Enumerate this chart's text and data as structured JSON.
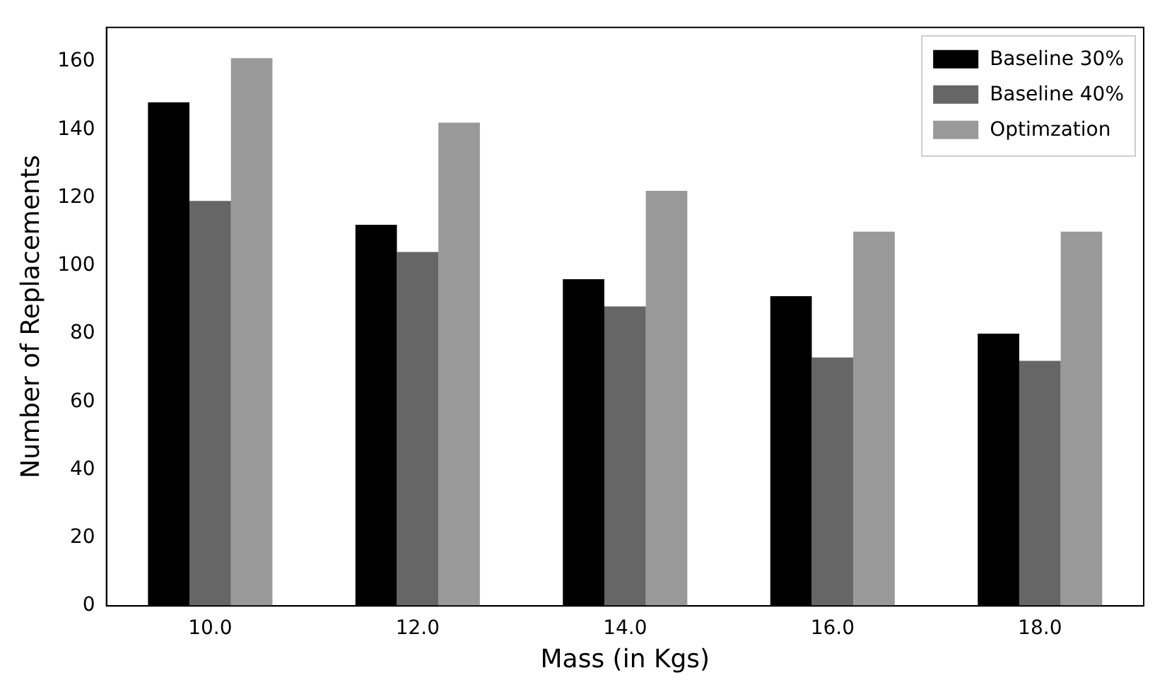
{
  "chart_data": {
    "type": "bar",
    "xlabel": "Mass (in Kgs)",
    "ylabel": "Number of Replacements",
    "categories": [
      "10.0",
      "12.0",
      "14.0",
      "16.0",
      "18.0"
    ],
    "series": [
      {
        "name": "Baseline 30%",
        "color": "#000000",
        "values": [
          148,
          112,
          96,
          91,
          80
        ]
      },
      {
        "name": "Baseline 40%",
        "color": "#666666",
        "values": [
          119,
          104,
          88,
          73,
          72
        ]
      },
      {
        "name": "Optimzation",
        "color": "#999999",
        "values": [
          161,
          142,
          122,
          110,
          110
        ]
      }
    ],
    "ylim": [
      0,
      170
    ],
    "yticks": [
      0,
      20,
      40,
      60,
      80,
      100,
      120,
      140,
      160
    ],
    "grid": false,
    "legend": "top right"
  }
}
